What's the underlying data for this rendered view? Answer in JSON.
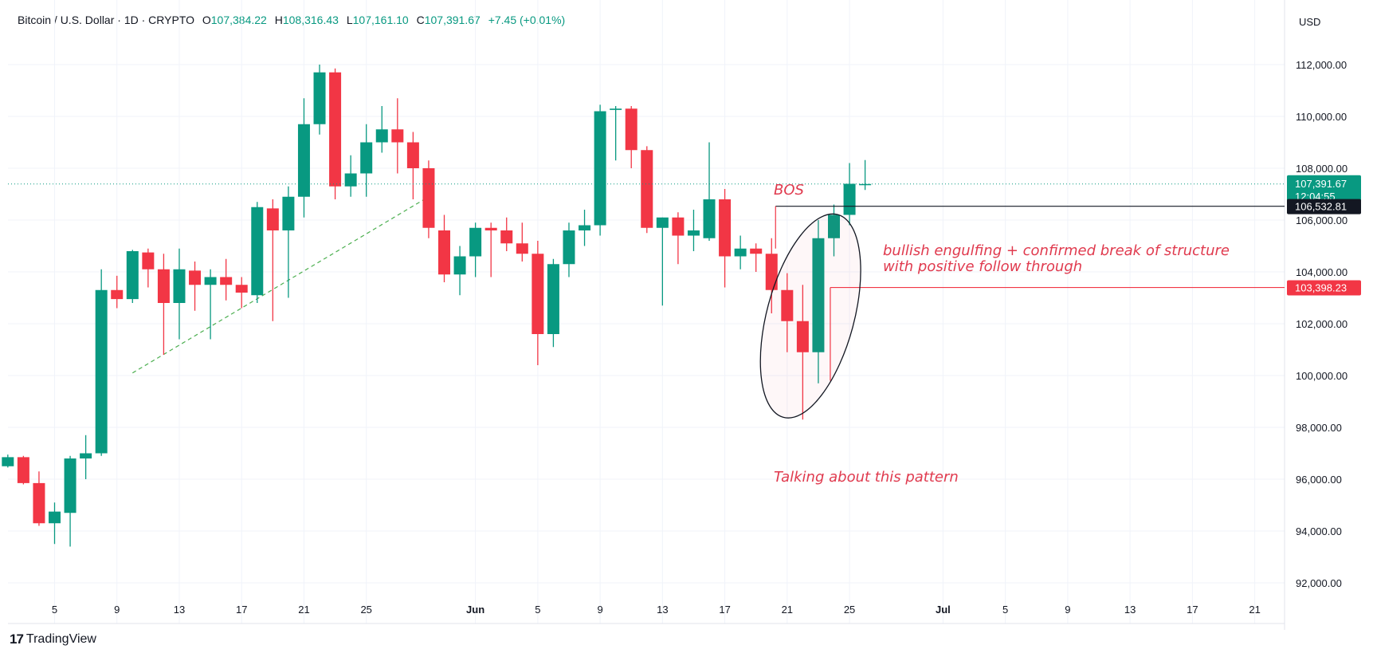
{
  "header": {
    "symbol": "Bitcoin / U.S. Dollar · 1D · CRYPTO",
    "o_label": "O",
    "o_value": "107,384.22",
    "h_label": "H",
    "h_value": "108,316.43",
    "l_label": "L",
    "l_value": "107,161.10",
    "c_label": "C",
    "c_value": "107,391.67",
    "change": "+7.45 (+0.01%)"
  },
  "currency": "USD",
  "footer": {
    "brand": "TradingView",
    "logo": "17"
  },
  "colors": {
    "up": "#089981",
    "down": "#f23645",
    "annotation": "#e03a4e",
    "trendline": "#4caf50"
  },
  "price_tags": {
    "last": {
      "price": "107,391.67",
      "countdown": "12:04:55"
    },
    "level_high": "106,532.81",
    "level_low": "103,398.23"
  },
  "annotations": {
    "bos": "BOS",
    "note_line1": "bullish engulfing + confirmed break of structure",
    "note_line2": "with positive follow through",
    "pattern": "Talking about this pattern"
  },
  "chart_data": {
    "type": "candlestick",
    "x_unit": "day of 2025",
    "ylim": [
      91000,
      113000
    ],
    "y_ticks": [
      {
        "value": 92000,
        "label": "92,000.00"
      },
      {
        "value": 94000,
        "label": "94,000.00"
      },
      {
        "value": 96000,
        "label": "96,000.00"
      },
      {
        "value": 98000,
        "label": "98,000.00"
      },
      {
        "value": 100000,
        "label": "100,000.00"
      },
      {
        "value": 102000,
        "label": "102,000.00"
      },
      {
        "value": 104000,
        "label": "104,000.00"
      },
      {
        "value": 106000,
        "label": "106,000.00"
      },
      {
        "value": 108000,
        "label": "108,000.00"
      },
      {
        "value": 110000,
        "label": "110,000.00"
      },
      {
        "value": 112000,
        "label": "112,000.00"
      }
    ],
    "x_ticks": [
      {
        "label": "5",
        "day": 5
      },
      {
        "label": "9",
        "day": 9
      },
      {
        "label": "13",
        "day": 13
      },
      {
        "label": "17",
        "day": 17
      },
      {
        "label": "21",
        "day": 21
      },
      {
        "label": "25",
        "day": 25
      },
      {
        "label": "Jun",
        "day": 32
      },
      {
        "label": "5",
        "day": 36
      },
      {
        "label": "9",
        "day": 40
      },
      {
        "label": "13",
        "day": 44
      },
      {
        "label": "17",
        "day": 48
      },
      {
        "label": "21",
        "day": 52
      },
      {
        "label": "25",
        "day": 56
      },
      {
        "label": "Jul",
        "day": 62
      },
      {
        "label": "5",
        "day": 66
      },
      {
        "label": "9",
        "day": 70
      },
      {
        "label": "13",
        "day": 74
      },
      {
        "label": "17",
        "day": 78
      },
      {
        "label": "21",
        "day": 82
      }
    ],
    "candles": [
      {
        "day": 2,
        "o": 96500,
        "h": 96950,
        "l": 96450,
        "c": 96850
      },
      {
        "day": 3,
        "o": 96850,
        "h": 96900,
        "l": 95800,
        "c": 95850
      },
      {
        "day": 4,
        "o": 95850,
        "h": 96300,
        "l": 94200,
        "c": 94300
      },
      {
        "day": 5,
        "o": 94300,
        "h": 95100,
        "l": 93500,
        "c": 94750
      },
      {
        "day": 6,
        "o": 94700,
        "h": 96900,
        "l": 93400,
        "c": 96800
      },
      {
        "day": 7,
        "o": 96800,
        "h": 97700,
        "l": 96000,
        "c": 97000
      },
      {
        "day": 8,
        "o": 97000,
        "h": 104100,
        "l": 96900,
        "c": 103300
      },
      {
        "day": 9,
        "o": 103300,
        "h": 103850,
        "l": 102600,
        "c": 102950
      },
      {
        "day": 10,
        "o": 102950,
        "h": 104850,
        "l": 102800,
        "c": 104800
      },
      {
        "day": 11,
        "o": 104750,
        "h": 104900,
        "l": 103400,
        "c": 104100
      },
      {
        "day": 12,
        "o": 104100,
        "h": 104700,
        "l": 100800,
        "c": 102800
      },
      {
        "day": 13,
        "o": 102800,
        "h": 104900,
        "l": 101400,
        "c": 104100
      },
      {
        "day": 14,
        "o": 104050,
        "h": 104400,
        "l": 102500,
        "c": 103500
      },
      {
        "day": 15,
        "o": 103500,
        "h": 104100,
        "l": 101400,
        "c": 103800
      },
      {
        "day": 16,
        "o": 103800,
        "h": 104500,
        "l": 102900,
        "c": 103500
      },
      {
        "day": 17,
        "o": 103500,
        "h": 103800,
        "l": 102600,
        "c": 103200
      },
      {
        "day": 18,
        "o": 103100,
        "h": 106700,
        "l": 102800,
        "c": 106500
      },
      {
        "day": 19,
        "o": 106450,
        "h": 106800,
        "l": 102100,
        "c": 105600
      },
      {
        "day": 20,
        "o": 105600,
        "h": 107300,
        "l": 103000,
        "c": 106900
      },
      {
        "day": 21,
        "o": 106900,
        "h": 110700,
        "l": 106100,
        "c": 109700
      },
      {
        "day": 22,
        "o": 109700,
        "h": 112000,
        "l": 109300,
        "c": 111700
      },
      {
        "day": 23,
        "o": 111700,
        "h": 111850,
        "l": 106800,
        "c": 107300
      },
      {
        "day": 24,
        "o": 107300,
        "h": 108500,
        "l": 106900,
        "c": 107800
      },
      {
        "day": 25,
        "o": 107800,
        "h": 109700,
        "l": 106900,
        "c": 109000
      },
      {
        "day": 26,
        "o": 109000,
        "h": 110400,
        "l": 108600,
        "c": 109500
      },
      {
        "day": 27,
        "o": 109500,
        "h": 110700,
        "l": 107800,
        "c": 109000
      },
      {
        "day": 28,
        "o": 109000,
        "h": 109400,
        "l": 106800,
        "c": 108000
      },
      {
        "day": 29,
        "o": 108000,
        "h": 108300,
        "l": 105300,
        "c": 105700
      },
      {
        "day": 30,
        "o": 105600,
        "h": 106200,
        "l": 103600,
        "c": 103900
      },
      {
        "day": 31,
        "o": 103900,
        "h": 105000,
        "l": 103100,
        "c": 104600
      },
      {
        "day": 32,
        "o": 104600,
        "h": 105900,
        "l": 103800,
        "c": 105700
      },
      {
        "day": 33,
        "o": 105700,
        "h": 105900,
        "l": 103800,
        "c": 105600
      },
      {
        "day": 34,
        "o": 105600,
        "h": 106100,
        "l": 104800,
        "c": 105100
      },
      {
        "day": 35,
        "o": 105100,
        "h": 105900,
        "l": 104400,
        "c": 104700
      },
      {
        "day": 36,
        "o": 104700,
        "h": 105200,
        "l": 100400,
        "c": 101600
      },
      {
        "day": 37,
        "o": 101600,
        "h": 104500,
        "l": 101100,
        "c": 104300
      },
      {
        "day": 38,
        "o": 104300,
        "h": 105900,
        "l": 103800,
        "c": 105600
      },
      {
        "day": 39,
        "o": 105600,
        "h": 106400,
        "l": 105000,
        "c": 105800
      },
      {
        "day": 40,
        "o": 105800,
        "h": 110450,
        "l": 105400,
        "c": 110200
      },
      {
        "day": 41,
        "o": 110250,
        "h": 110400,
        "l": 108300,
        "c": 110300
      },
      {
        "day": 42,
        "o": 110300,
        "h": 110400,
        "l": 108000,
        "c": 108700
      },
      {
        "day": 43,
        "o": 108700,
        "h": 108850,
        "l": 105500,
        "c": 105700
      },
      {
        "day": 44,
        "o": 105700,
        "h": 106100,
        "l": 102700,
        "c": 106100
      },
      {
        "day": 45,
        "o": 106100,
        "h": 106300,
        "l": 104300,
        "c": 105400
      },
      {
        "day": 46,
        "o": 105400,
        "h": 106400,
        "l": 104800,
        "c": 105600
      },
      {
        "day": 47,
        "o": 105300,
        "h": 109000,
        "l": 105200,
        "c": 106800
      },
      {
        "day": 48,
        "o": 106800,
        "h": 107200,
        "l": 103400,
        "c": 104600
      },
      {
        "day": 49,
        "o": 104600,
        "h": 105400,
        "l": 104100,
        "c": 104900
      },
      {
        "day": 50,
        "o": 104900,
        "h": 105100,
        "l": 104000,
        "c": 104700
      },
      {
        "day": 51,
        "o": 104700,
        "h": 105300,
        "l": 102400,
        "c": 103300
      },
      {
        "day": 52,
        "o": 103300,
        "h": 103950,
        "l": 100900,
        "c": 102100
      },
      {
        "day": 53,
        "o": 102100,
        "h": 103500,
        "l": 98300,
        "c": 100900
      },
      {
        "day": 54,
        "o": 100900,
        "h": 106000,
        "l": 99700,
        "c": 105300
      },
      {
        "day": 55,
        "o": 105300,
        "h": 106600,
        "l": 104600,
        "c": 106200
      },
      {
        "day": 56,
        "o": 106200,
        "h": 108200,
        "l": 105800,
        "c": 107400
      },
      {
        "day": 57,
        "o": 107384.22,
        "h": 108316.43,
        "l": 107161.1,
        "c": 107391.67
      }
    ],
    "levels": [
      {
        "price": 106532.81,
        "from_day": 51,
        "style": "black"
      },
      {
        "price": 103398.23,
        "from_day": 54,
        "style": "red"
      }
    ],
    "last_price": 107391.67,
    "trendline": [
      {
        "day": 10,
        "price": 100100
      },
      {
        "day": 29,
        "price": 106900
      }
    ],
    "ellipse": {
      "center_day": 53.5,
      "center_price": 102300,
      "rx_days": 2.8,
      "ry_price": 4050,
      "rotation": 15
    }
  }
}
